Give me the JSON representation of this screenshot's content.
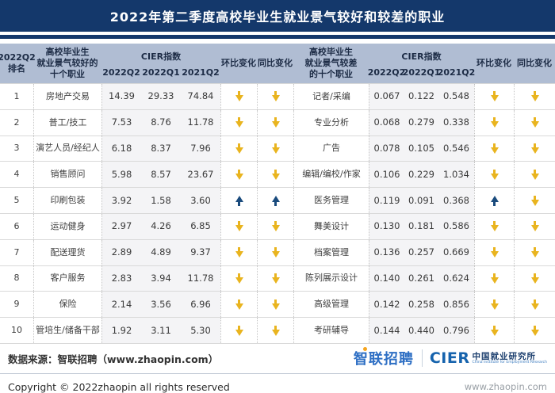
{
  "title": "2022年第二季度高校毕业生就业景气较好和较差的职业",
  "table": {
    "rank_header": "2022Q2\n排名",
    "good_group_header": "高校毕业生\n就业景气较好的\n十个职业",
    "bad_group_header": "高校毕业生\n就业景气较差\n的十个职业",
    "cier_header": "CIER指数",
    "quarters": [
      "2022Q2",
      "2022Q1",
      "2021Q2"
    ],
    "mom_header": "环比变化",
    "yoy_header": "同比变化",
    "rows": [
      {
        "rank": "1",
        "good_job": "房地产交易",
        "good": [
          "14.39",
          "29.33",
          "74.84"
        ],
        "good_mom": "down",
        "good_yoy": "down",
        "bad_job": "记者/采编",
        "bad": [
          "0.067",
          "0.122",
          "0.548"
        ],
        "bad_mom": "down",
        "bad_yoy": "down"
      },
      {
        "rank": "2",
        "good_job": "普工/技工",
        "good": [
          "7.53",
          "8.76",
          "11.78"
        ],
        "good_mom": "down",
        "good_yoy": "down",
        "bad_job": "专业分析",
        "bad": [
          "0.068",
          "0.279",
          "0.338"
        ],
        "bad_mom": "down",
        "bad_yoy": "down"
      },
      {
        "rank": "3",
        "good_job": "演艺人员/经纪人",
        "good": [
          "6.18",
          "8.37",
          "7.96"
        ],
        "good_mom": "down",
        "good_yoy": "down",
        "bad_job": "广告",
        "bad": [
          "0.078",
          "0.105",
          "0.546"
        ],
        "bad_mom": "down",
        "bad_yoy": "down"
      },
      {
        "rank": "4",
        "good_job": "销售顾问",
        "good": [
          "5.98",
          "8.57",
          "23.67"
        ],
        "good_mom": "down",
        "good_yoy": "down",
        "bad_job": "编辑/编校/作家",
        "bad": [
          "0.106",
          "0.229",
          "1.034"
        ],
        "bad_mom": "down",
        "bad_yoy": "down"
      },
      {
        "rank": "5",
        "good_job": "印刷包装",
        "good": [
          "3.92",
          "1.58",
          "3.60"
        ],
        "good_mom": "up",
        "good_yoy": "up",
        "bad_job": "医务管理",
        "bad": [
          "0.119",
          "0.091",
          "0.368"
        ],
        "bad_mom": "up",
        "bad_yoy": "down"
      },
      {
        "rank": "6",
        "good_job": "运动健身",
        "good": [
          "2.97",
          "4.26",
          "6.85"
        ],
        "good_mom": "down",
        "good_yoy": "down",
        "bad_job": "舞美设计",
        "bad": [
          "0.130",
          "0.181",
          "0.586"
        ],
        "bad_mom": "down",
        "bad_yoy": "down"
      },
      {
        "rank": "7",
        "good_job": "配送理货",
        "good": [
          "2.89",
          "4.89",
          "9.37"
        ],
        "good_mom": "down",
        "good_yoy": "down",
        "bad_job": "档案管理",
        "bad": [
          "0.136",
          "0.257",
          "0.669"
        ],
        "bad_mom": "down",
        "bad_yoy": "down"
      },
      {
        "rank": "8",
        "good_job": "客户服务",
        "good": [
          "2.83",
          "3.94",
          "11.78"
        ],
        "good_mom": "down",
        "good_yoy": "down",
        "bad_job": "陈列展示设计",
        "bad": [
          "0.140",
          "0.261",
          "0.624"
        ],
        "bad_mom": "down",
        "bad_yoy": "down"
      },
      {
        "rank": "9",
        "good_job": "保险",
        "good": [
          "2.14",
          "3.56",
          "6.96"
        ],
        "good_mom": "down",
        "good_yoy": "down",
        "bad_job": "高级管理",
        "bad": [
          "0.142",
          "0.258",
          "0.856"
        ],
        "bad_mom": "down",
        "bad_yoy": "down"
      },
      {
        "rank": "10",
        "good_job": "管培生/储备干部",
        "good": [
          "1.92",
          "3.11",
          "5.30"
        ],
        "good_mom": "down",
        "good_yoy": "down",
        "bad_job": "考研辅导",
        "bad": [
          "0.144",
          "0.440",
          "0.796"
        ],
        "bad_mom": "down",
        "bad_yoy": "down"
      }
    ]
  },
  "footer": {
    "source": "数据来源：智联招聘（www.zhaopin.com）",
    "zhaopin_logo": "智联招聘",
    "cier_logo": "CIER",
    "cier_cn": "中国就业研究所",
    "cier_en": "China Institute for Employment Research",
    "copyright": "Copyright © 2022zhaopin all rights reserved",
    "website": "www.zhaopin.com"
  },
  "colors": {
    "title_bar": "#14386b",
    "header_bg": "#b0bdd3",
    "band_bg": "#f4f4f6",
    "arrow_down": "#e9b41f",
    "arrow_up": "#1a4b7d",
    "zhaopin_blue": "#2e6fc4",
    "cier_blue": "#1663ad"
  }
}
